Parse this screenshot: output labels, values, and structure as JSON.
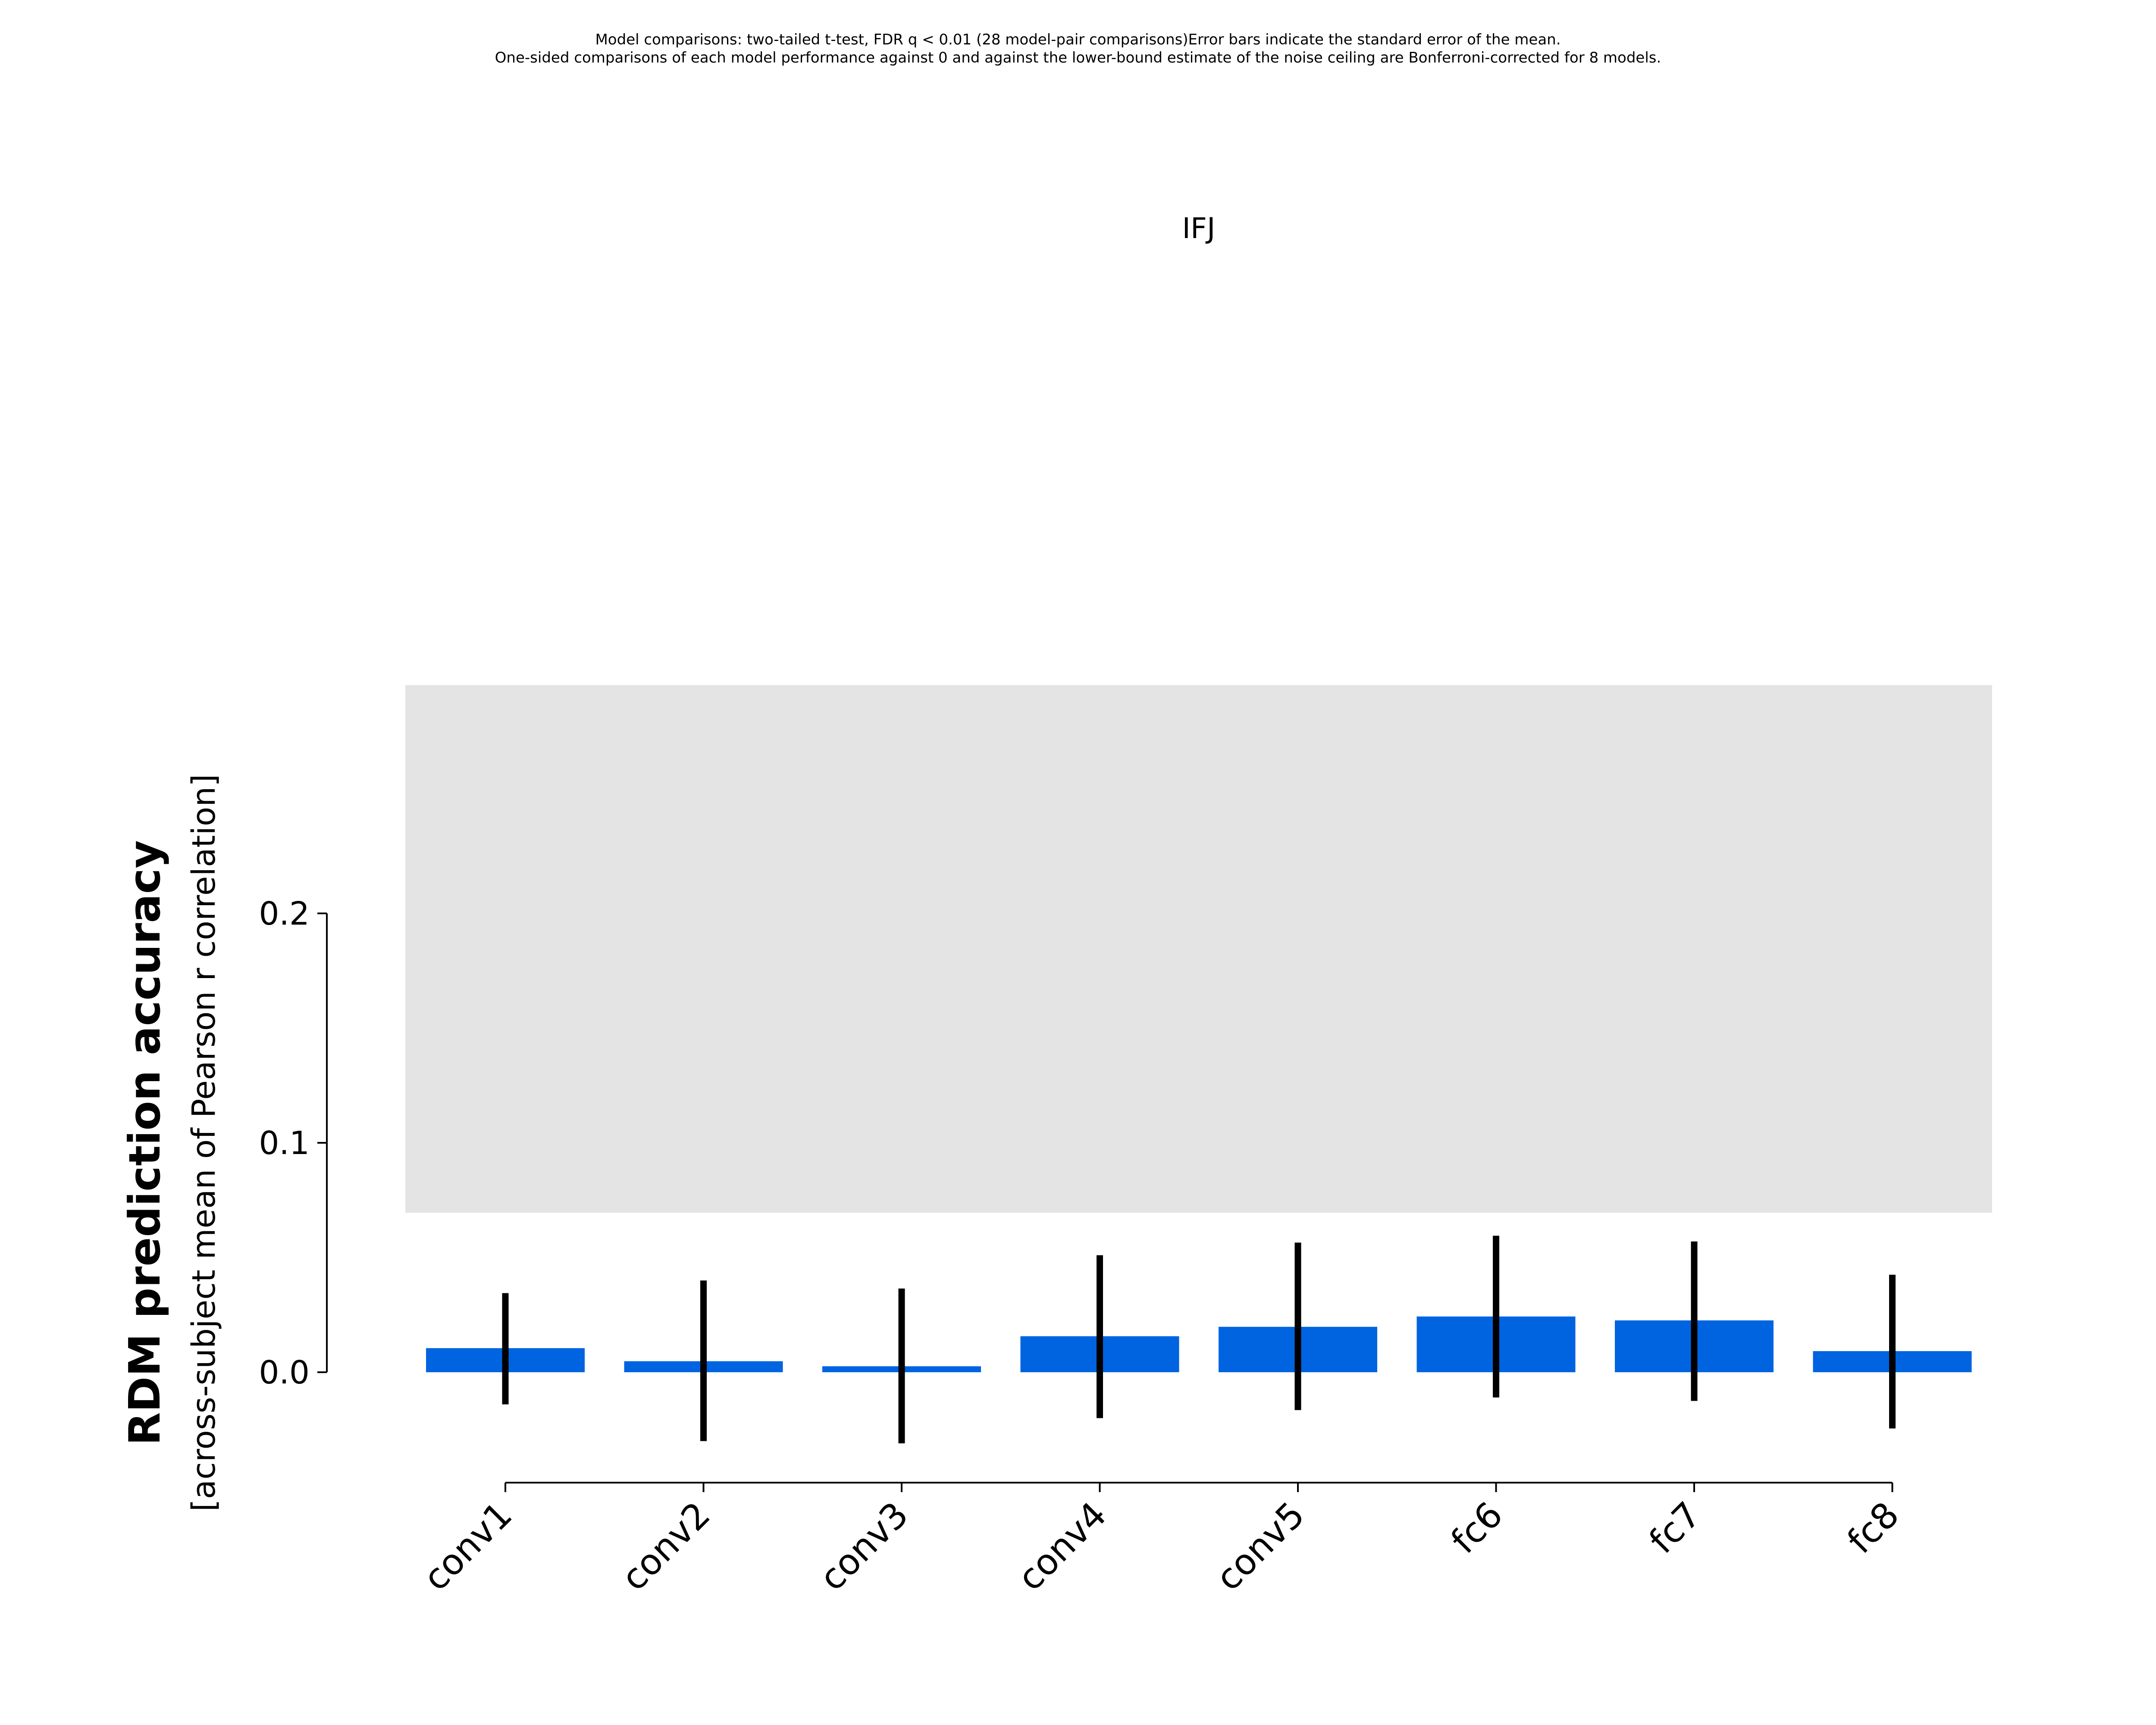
{
  "chart_data": {
    "type": "bar",
    "title": "IFJ",
    "notes": [
      "Model comparisons: two-tailed t-test, FDR q < 0.01 (28 model-pair comparisons)Error bars indicate the standard error of the mean.",
      "One-sided comparisons of each model performance against 0 and against the lower-bound estimate of the noise ceiling are Bonferroni-corrected for 8 models."
    ],
    "ylabel": "RDM prediction accuracy",
    "ylabel_sub": "[across-subject mean of Pearson r correlation]",
    "xlabel": "",
    "categories": [
      "conv1",
      "conv2",
      "conv3",
      "conv4",
      "conv5",
      "fc6",
      "fc7",
      "fc8"
    ],
    "values": [
      0.0105,
      0.0048,
      0.0026,
      0.0157,
      0.0198,
      0.0243,
      0.0226,
      0.0092
    ],
    "error_low": [
      -0.014,
      -0.03,
      -0.031,
      -0.02,
      -0.0165,
      -0.011,
      -0.0125,
      -0.0245
    ],
    "error_high": [
      0.0345,
      0.04,
      0.0365,
      0.051,
      0.0565,
      0.0595,
      0.057,
      0.0425
    ],
    "noise_ceiling": {
      "lower": 0.0695,
      "upper": 0.2995
    },
    "yticks": [
      0.0,
      0.1,
      0.2
    ],
    "ytick_labels": [
      "0.0",
      "0.1",
      "0.2"
    ],
    "ylim": [
      -0.0485,
      0.2995
    ],
    "colors": {
      "bar": "#0064e1",
      "error_bar": "#000000",
      "noise_ceiling": "#e4e4e4",
      "axis": "#000000"
    },
    "grid": false,
    "legend": "none"
  }
}
